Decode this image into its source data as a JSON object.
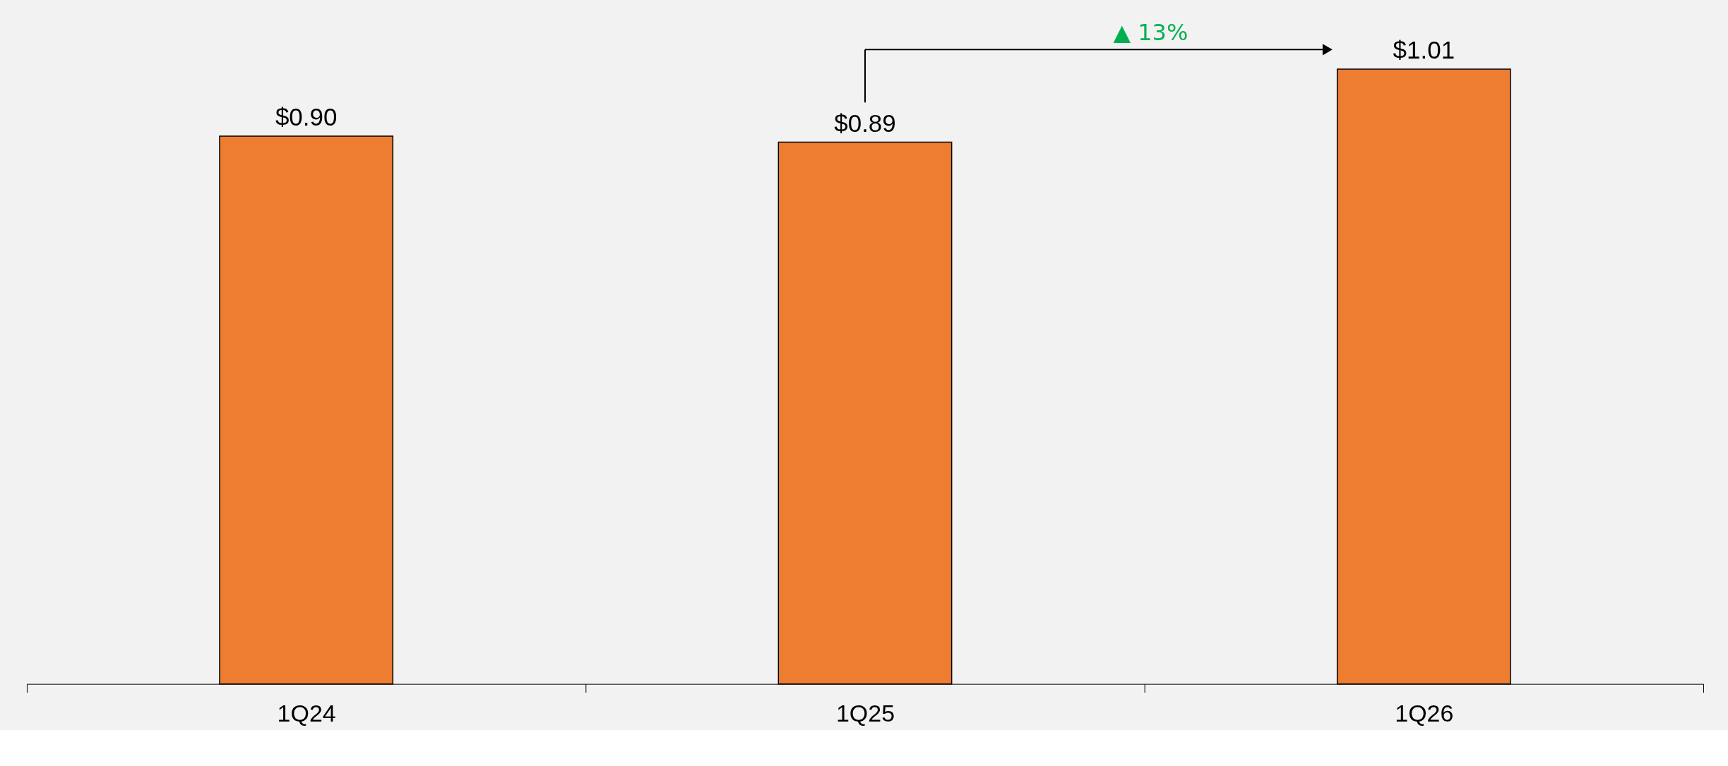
{
  "chart_data": {
    "type": "bar",
    "categories": [
      "1Q24",
      "1Q25",
      "1Q26"
    ],
    "values": [
      0.9,
      0.89,
      1.01
    ],
    "value_labels": [
      "$0.90",
      "$0.89",
      "$1.01"
    ],
    "color": "#ed7d31",
    "tick_labels": "x",
    "annotations": [
      "▲ 13%"
    ]
  }
}
